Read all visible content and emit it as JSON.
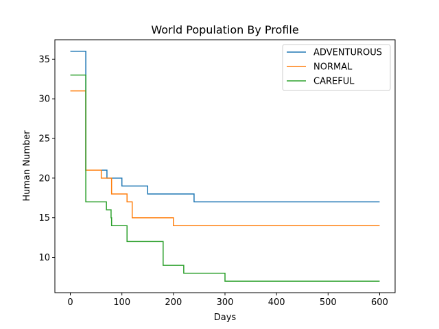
{
  "chart_data": {
    "type": "line",
    "title": "World Population By Profile",
    "xlabel": "Days",
    "ylabel": "Human Number",
    "xlim": [
      -30,
      630
    ],
    "ylim": [
      5.55,
      37.45
    ],
    "xticks": [
      0,
      100,
      200,
      300,
      400,
      500,
      600
    ],
    "yticks": [
      10,
      15,
      20,
      25,
      30,
      35
    ],
    "legend_position": "top-right",
    "step": "post",
    "series": [
      {
        "name": "ADVENTUROUS",
        "color": "#1f77b4",
        "x": [
          0,
          29,
          30,
          70,
          71,
          99,
          100,
          149,
          150,
          239,
          240,
          600
        ],
        "y": [
          36,
          36,
          21,
          21,
          20,
          20,
          19,
          19,
          18,
          18,
          17,
          17
        ]
      },
      {
        "name": "NORMAL",
        "color": "#ff7f0e",
        "x": [
          0,
          29,
          30,
          59,
          60,
          79,
          80,
          109,
          110,
          119,
          120,
          199,
          200,
          600
        ],
        "y": [
          31,
          31,
          21,
          21,
          20,
          20,
          18,
          18,
          17,
          17,
          15,
          15,
          14,
          14
        ]
      },
      {
        "name": "CAREFUL",
        "color": "#2ca02c",
        "x": [
          0,
          28,
          29,
          30,
          69,
          70,
          78,
          79,
          80,
          109,
          110,
          179,
          180,
          219,
          220,
          299,
          300,
          600
        ],
        "y": [
          33,
          33,
          33,
          17,
          17,
          16,
          16,
          15,
          14,
          14,
          12,
          12,
          9,
          9,
          8,
          8,
          7,
          7
        ]
      }
    ]
  }
}
